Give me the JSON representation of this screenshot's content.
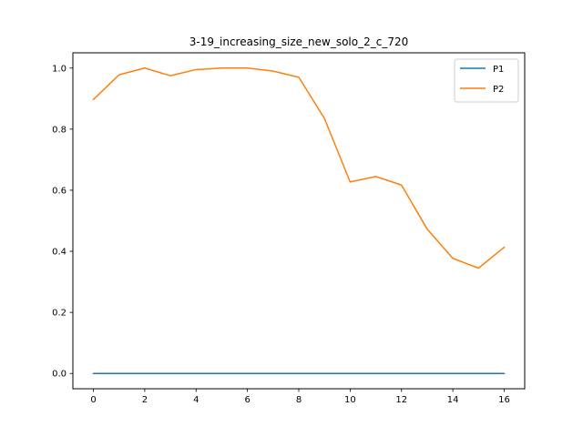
{
  "chart_data": {
    "type": "line",
    "title": "3-19_increasing_size_new_solo_2_c_720",
    "xlabel": "",
    "ylabel": "",
    "x": [
      0,
      1,
      2,
      3,
      4,
      5,
      6,
      7,
      8,
      9,
      10,
      11,
      12,
      13,
      14,
      15,
      16
    ],
    "xlim": [
      -0.8,
      16.8
    ],
    "ylim": [
      -0.05,
      1.05
    ],
    "xticks": [
      "0",
      "2",
      "4",
      "6",
      "8",
      "10",
      "12",
      "14",
      "16"
    ],
    "yticks": [
      "0.0",
      "0.2",
      "0.4",
      "0.6",
      "0.8",
      "1.0"
    ],
    "grid": false,
    "legend_position": "top-right",
    "series": [
      {
        "name": "P1",
        "color": "#1f77b4",
        "values": [
          0,
          0,
          0,
          0,
          0,
          0,
          0,
          0,
          0,
          0,
          0,
          0,
          0,
          0,
          0,
          0,
          0
        ]
      },
      {
        "name": "P2",
        "color": "#ff7f0e",
        "values": [
          0.897,
          0.978,
          1.0,
          0.975,
          0.995,
          1.0,
          1.0,
          0.99,
          0.97,
          0.835,
          0.627,
          0.645,
          0.617,
          0.473,
          0.377,
          0.345,
          0.413
        ]
      }
    ]
  }
}
